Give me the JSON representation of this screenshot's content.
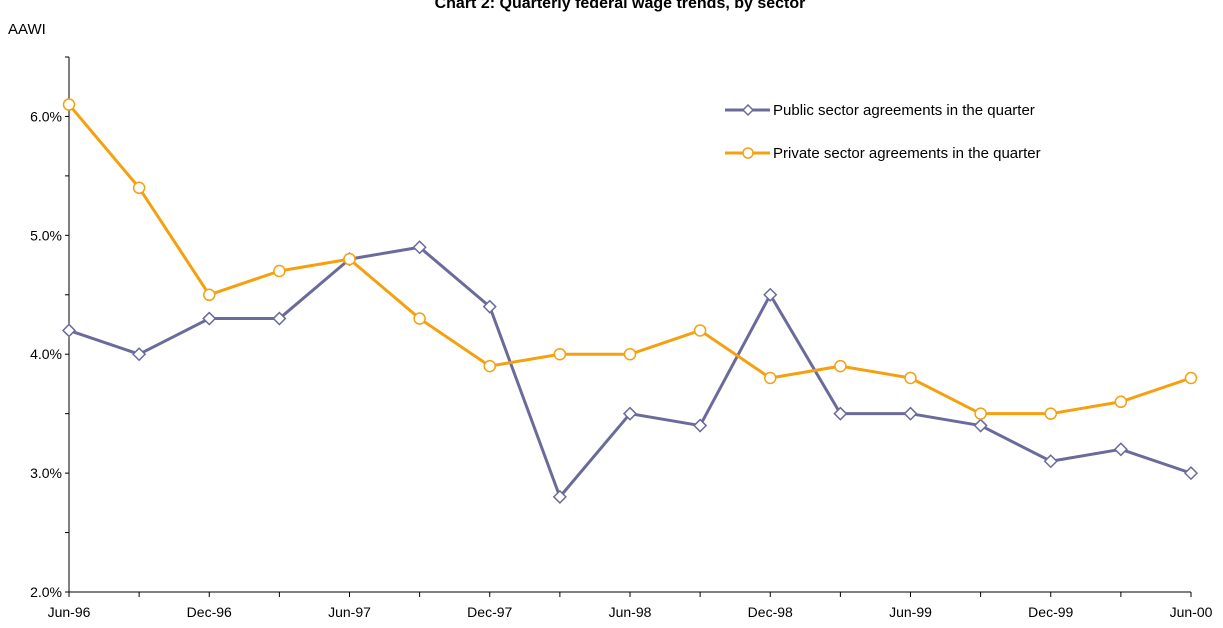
{
  "chart_data": {
    "type": "line",
    "title": "Chart 2: Quarterly federal wage trends, by sector",
    "ylabel": "AAWI",
    "xlabel": "",
    "x": [
      "Jun-96",
      "Sep-96",
      "Dec-96",
      "Mar-97",
      "Jun-97",
      "Sep-97",
      "Dec-97",
      "Mar-98",
      "Jun-98",
      "Sep-98",
      "Dec-98",
      "Mar-99",
      "Jun-99",
      "Sep-99",
      "Dec-99",
      "Mar-00",
      "Jun-00"
    ],
    "x_tick_labels": [
      "Jun-96",
      "Dec-96",
      "Jun-97",
      "Dec-97",
      "Jun-98",
      "Dec-98",
      "Jun-99",
      "Dec-99",
      "Jun-00"
    ],
    "ylim": [
      0.02,
      0.065
    ],
    "y_ticks": [
      0.02,
      0.03,
      0.04,
      0.05,
      0.06
    ],
    "y_tick_labels": [
      "2.0%",
      "3.0%",
      "4.0%",
      "5.0%",
      "6.0%"
    ],
    "legend_position": "top-right",
    "grid": false,
    "series": [
      {
        "name": "Public sector agreements in the quarter",
        "color": "#6b6b9b",
        "marker": "diamond",
        "values": [
          0.042,
          0.04,
          0.043,
          0.043,
          0.048,
          0.049,
          0.044,
          0.028,
          0.035,
          0.034,
          0.045,
          0.035,
          0.035,
          0.034,
          0.031,
          0.032,
          0.03
        ]
      },
      {
        "name": "Private sector agreements in the quarter",
        "color": "#f5a00f",
        "marker": "circle",
        "values": [
          0.061,
          0.054,
          0.045,
          0.047,
          0.048,
          0.043,
          0.039,
          0.04,
          0.04,
          0.042,
          0.038,
          0.039,
          0.038,
          0.035,
          0.035,
          0.036,
          0.038
        ]
      }
    ]
  }
}
